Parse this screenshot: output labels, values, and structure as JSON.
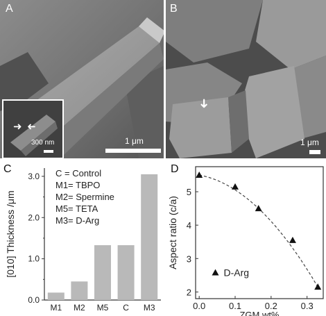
{
  "figure": {
    "panel_a": {
      "label": "A",
      "scale_label": "1 μm",
      "inset_scale_label": "300 nm"
    },
    "panel_b": {
      "label": "B",
      "scale_label": "1 μm"
    },
    "panel_c": {
      "label": "C",
      "legend": [
        "C  = Control",
        "M1= TBPO",
        "M2= Spermine",
        "M5= TETA",
        "M3= D-Arg"
      ]
    },
    "panel_d": {
      "label": "D",
      "legend_label": "D-Arg"
    }
  },
  "chart_data": [
    {
      "type": "bar",
      "panel": "C",
      "categories": [
        "M1",
        "M2",
        "M5",
        "C",
        "M3"
      ],
      "values": [
        0.18,
        0.45,
        1.33,
        1.33,
        3.05
      ],
      "ylabel": "[010] Thickness /μm",
      "ylim": [
        0,
        3.2
      ],
      "yticks": [
        "0.0",
        "1.0",
        "2.0",
        "3.0"
      ],
      "bar_color": "#b9b9b9"
    },
    {
      "type": "scatter",
      "panel": "D",
      "x": [
        0.0,
        0.1,
        0.165,
        0.26,
        0.33
      ],
      "y": [
        5.5,
        5.15,
        4.5,
        3.55,
        2.15
      ],
      "xlabel": "ZGM wt%",
      "ylabel": "Aspect ratio (c/a)",
      "xlim": [
        -0.01,
        0.345
      ],
      "ylim": [
        1.8,
        5.75
      ],
      "xticks": [
        "0.0",
        "0.1",
        "0.2",
        "0.3"
      ],
      "yticks": [
        "2",
        "3",
        "4",
        "5"
      ],
      "series": [
        {
          "name": "D-Arg",
          "marker": "triangle",
          "trend": "dashed"
        }
      ]
    }
  ]
}
